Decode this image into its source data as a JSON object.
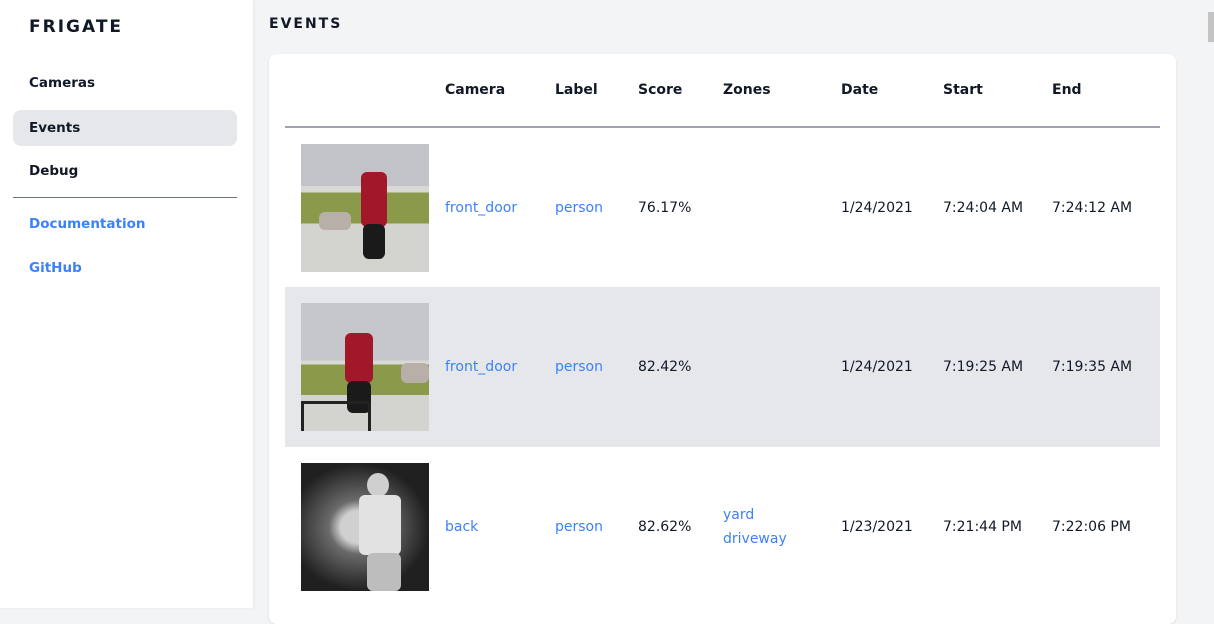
{
  "sidebar": {
    "brand": "FRIGATE",
    "items": [
      {
        "label": "Cameras"
      },
      {
        "label": "Events"
      },
      {
        "label": "Debug"
      }
    ],
    "links": [
      {
        "label": "Documentation"
      },
      {
        "label": "GitHub"
      }
    ]
  },
  "main": {
    "title": "EVENTS",
    "columns": [
      "",
      "Camera",
      "Label",
      "Score",
      "Zones",
      "Date",
      "Start",
      "End"
    ],
    "rows": [
      {
        "camera": "front_door",
        "label": "person",
        "score": "76.17%",
        "zones": [
          "",
          ""
        ],
        "date": "1/24/2021",
        "start": "7:24:04 AM",
        "end": "7:24:12 AM"
      },
      {
        "camera": "front_door",
        "label": "person",
        "score": "82.42%",
        "zones": [
          "",
          ""
        ],
        "date": "1/24/2021",
        "start": "7:19:25 AM",
        "end": "7:19:35 AM"
      },
      {
        "camera": "back",
        "label": "person",
        "score": "82.62%",
        "zones": [
          "yard",
          "driveway"
        ],
        "date": "1/23/2021",
        "start": "7:21:44 PM",
        "end": "7:22:06 PM"
      }
    ]
  },
  "colors": {
    "accent": "#3b82f6",
    "active_bg": "#e5e7eb"
  }
}
